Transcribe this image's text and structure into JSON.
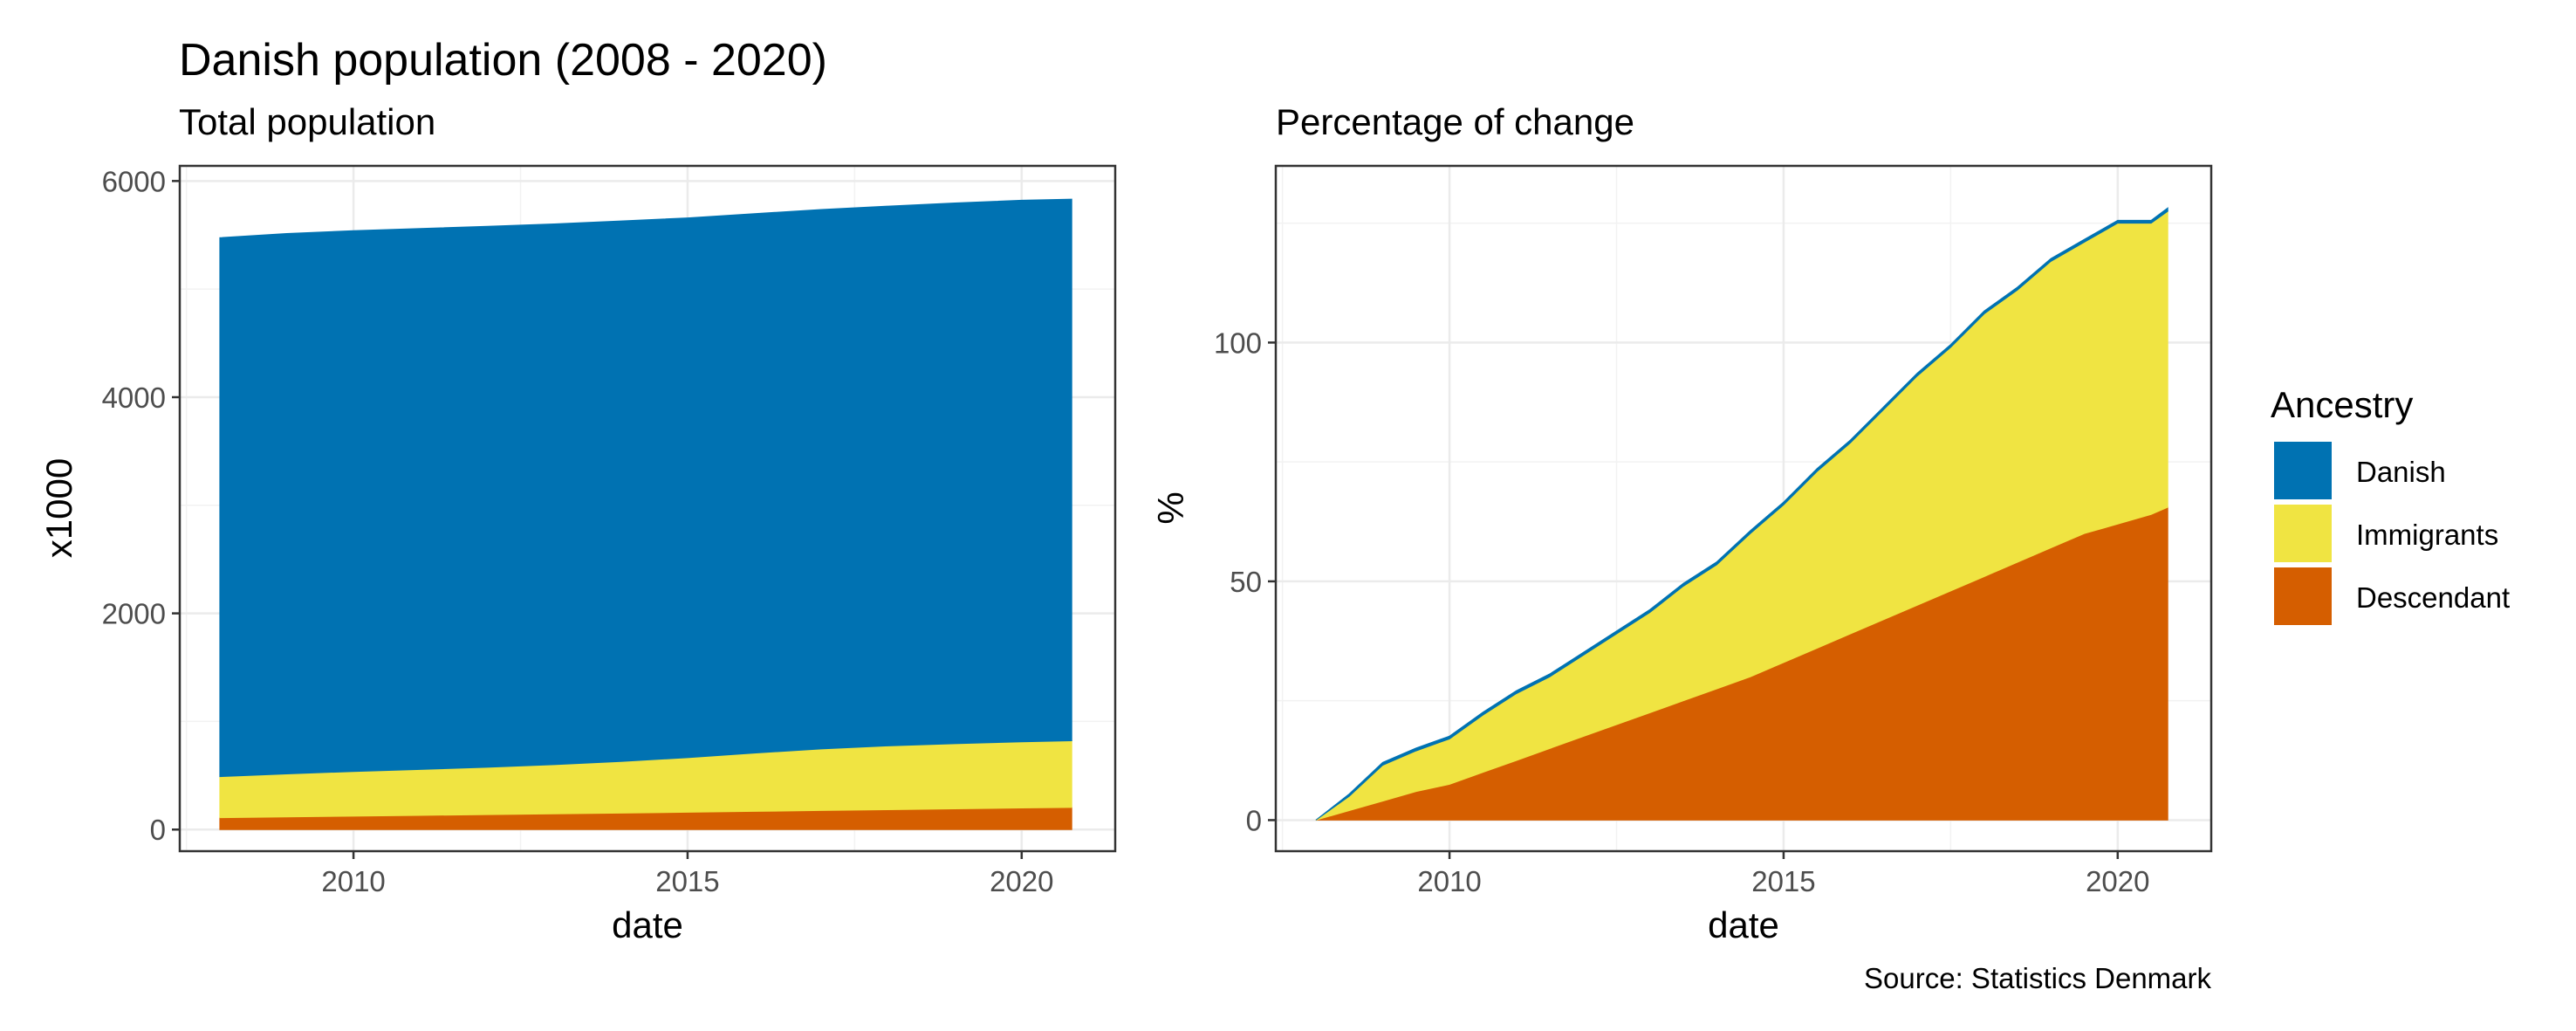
{
  "title": "Danish population (2008 - 2020)",
  "caption": "Source: Statistics Denmark",
  "legend": {
    "title": "Ancestry",
    "items": [
      {
        "label": "Danish",
        "color": "#0072B2"
      },
      {
        "label": "Immigrants",
        "color": "#F0E442"
      },
      {
        "label": "Descendant",
        "color": "#D55E00"
      }
    ]
  },
  "chart_data": [
    {
      "type": "area",
      "stacked": true,
      "subtitle": "Total population",
      "xlabel": "date",
      "ylabel": "x1000",
      "xlim": [
        2007.4,
        2021.4
      ],
      "ylim": [
        -200,
        6140
      ],
      "xticks": [
        2010,
        2015,
        2020
      ],
      "yticks": [
        0,
        2000,
        4000,
        6000
      ],
      "grid": true,
      "x": [
        2008,
        2009,
        2010,
        2011,
        2012,
        2013,
        2014,
        2015,
        2016,
        2017,
        2018,
        2019,
        2020,
        2020.75
      ],
      "series": [
        {
          "name": "Descendant",
          "color": "#D55E00",
          "values": [
            110,
            117,
            124,
            131,
            138,
            145,
            152,
            160,
            168,
            176,
            184,
            192,
            200,
            205
          ]
        },
        {
          "name": "Immigrants",
          "color": "#F0E442",
          "values": [
            380,
            398,
            413,
            425,
            438,
            455,
            478,
            505,
            540,
            570,
            590,
            602,
            612,
            617
          ]
        },
        {
          "name": "Danish",
          "color": "#0072B2",
          "values": [
            4985,
            4999,
            5003,
            5004,
            5005,
            5003,
            5000,
            4994,
            4990,
            4990,
            4994,
            5003,
            5010,
            5010
          ]
        }
      ]
    },
    {
      "type": "area",
      "stacked": true,
      "subtitle": "Percentage of change",
      "xlabel": "date",
      "ylabel": "%",
      "xlim": [
        2007.4,
        2021.4
      ],
      "ylim": [
        -6.5,
        137
      ],
      "xticks": [
        2010,
        2015,
        2020
      ],
      "yticks": [
        0,
        50,
        100
      ],
      "grid": true,
      "x": [
        2008,
        2008.5,
        2009,
        2009.5,
        2010,
        2010.5,
        2011,
        2011.5,
        2012,
        2012.5,
        2013,
        2013.5,
        2014,
        2014.5,
        2015,
        2015.5,
        2016,
        2016.5,
        2017,
        2017.5,
        2018,
        2018.5,
        2019,
        2019.5,
        2020,
        2020.5,
        2020.75
      ],
      "series": [
        {
          "name": "Descendant",
          "color": "#D55E00",
          "values": [
            0,
            2,
            4,
            6,
            7.5,
            10,
            12.5,
            15,
            17.5,
            20,
            22.5,
            25,
            27.5,
            30,
            33,
            36,
            39,
            42,
            45,
            48,
            51,
            54,
            57,
            60,
            62,
            64,
            65.5
          ]
        },
        {
          "name": "Immigrants",
          "color": "#F0E442",
          "values": [
            0,
            3,
            7.5,
            8.5,
            9.5,
            12,
            14,
            15,
            17,
            19,
            21,
            24,
            26,
            30,
            33,
            37,
            40,
            44,
            48,
            51,
            55,
            57,
            60,
            61,
            63,
            61,
            62
          ]
        },
        {
          "name": "Danish",
          "color": "#0072B2",
          "values": [
            0,
            0.5,
            0.6,
            0.6,
            0.6,
            0.6,
            0.6,
            0.6,
            0.6,
            0.6,
            0.6,
            0.6,
            0.6,
            0.6,
            0.6,
            0.6,
            0.6,
            0.6,
            0.6,
            0.6,
            0.6,
            0.6,
            0.6,
            0.6,
            0.6,
            0.6,
            0.7
          ]
        }
      ]
    }
  ]
}
